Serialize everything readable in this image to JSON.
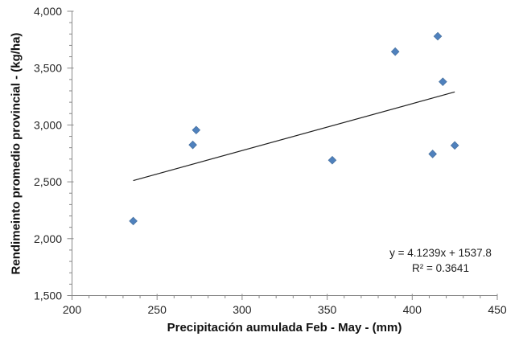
{
  "chart_data": {
    "type": "scatter",
    "title": "",
    "xlabel": "Precipitación aumulada Feb - May - (mm)",
    "ylabel": "Rendimeinto promedio provincial - (kg/ha)",
    "xlim": [
      200,
      450
    ],
    "ylim": [
      1500,
      4000
    ],
    "x_ticks": [
      {
        "value": 200,
        "label": "200"
      },
      {
        "value": 250,
        "label": "250"
      },
      {
        "value": 300,
        "label": "300"
      },
      {
        "value": 350,
        "label": "350"
      },
      {
        "value": 400,
        "label": "400"
      },
      {
        "value": 450,
        "label": "450"
      }
    ],
    "y_ticks": [
      {
        "value": 1500,
        "label": "1,500"
      },
      {
        "value": 2000,
        "label": "2,000"
      },
      {
        "value": 2500,
        "label": "2,500"
      },
      {
        "value": 3000,
        "label": "3,000"
      },
      {
        "value": 3500,
        "label": "3,500"
      },
      {
        "value": 4000,
        "label": "4,000"
      }
    ],
    "x_minor_tick_step": 10,
    "y_minor_tick_step": 100,
    "grid": false,
    "legend": "none",
    "series": [
      {
        "marker": "diamond",
        "marker_color": "#4f81bd",
        "points": [
          [
            236,
            2155
          ],
          [
            271,
            2825
          ],
          [
            273,
            2955
          ],
          [
            353,
            2690
          ],
          [
            390,
            3645
          ],
          [
            412,
            2745
          ],
          [
            415,
            3780
          ],
          [
            418,
            3380
          ],
          [
            425,
            2820
          ]
        ]
      }
    ],
    "trendline": {
      "slope": 4.1239,
      "intercept": 1537.8,
      "x_range": [
        236,
        425
      ],
      "equation": "y = 4.1239x + 1537.8",
      "r_squared_label": "R² = 0.3641",
      "color": "#1f1f1f"
    },
    "axis_color": "#898989",
    "text_color": "#262626"
  }
}
